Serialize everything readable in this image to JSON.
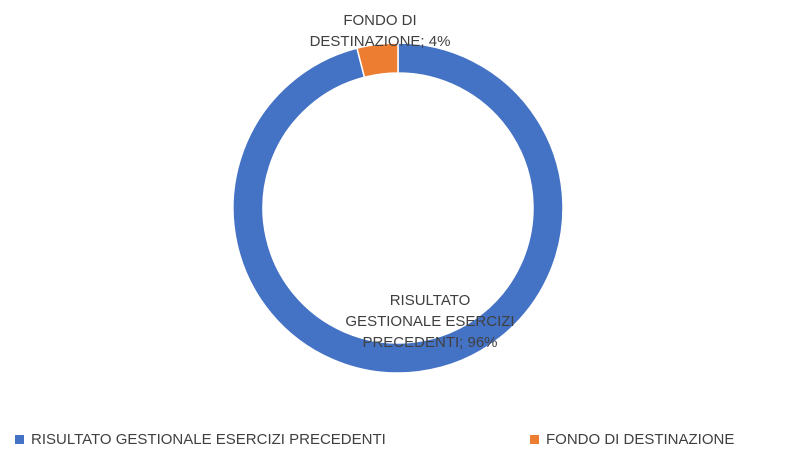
{
  "chart_data": {
    "type": "donut",
    "categories": [
      "RISULTATO GESTIONALE ESERCIZI PRECEDENTI",
      "FONDO DI DESTINAZIONE"
    ],
    "values": [
      96,
      4
    ],
    "value_labels": [
      "RISULTATO GESTIONALE ESERCIZI PRECEDENTI; 96%",
      "FONDO DI DESTINAZIONE; 4%"
    ],
    "colors": [
      "#4472c4",
      "#ed7d31"
    ],
    "legend": "bottom"
  }
}
